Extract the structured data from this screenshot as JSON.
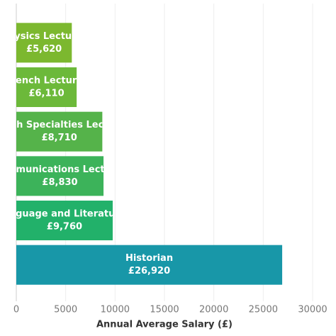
{
  "chart_data": {
    "type": "barh",
    "xlabel": "Annual Average Salary (£)",
    "categories": [
      "Physics Lecturer",
      "French Lecturer",
      "Health Specialties Lecturer",
      "Communications Lecturer",
      "English Language and Literature Lecturer",
      "Historian"
    ],
    "values": [
      5620,
      6110,
      8710,
      8830,
      9760,
      26920
    ],
    "value_labels": [
      "£5,620",
      "£6,110",
      "£8,710",
      "£8,830",
      "£9,760",
      "£26,920"
    ],
    "colors": [
      "#7cb82f",
      "#6cb93a",
      "#55b34a",
      "#3cb35a",
      "#22b16a",
      "#1897a8"
    ],
    "xlim": [
      0,
      30000
    ],
    "xticks": [
      0,
      5000,
      10000,
      15000,
      20000,
      25000,
      30000
    ],
    "grid": true
  }
}
